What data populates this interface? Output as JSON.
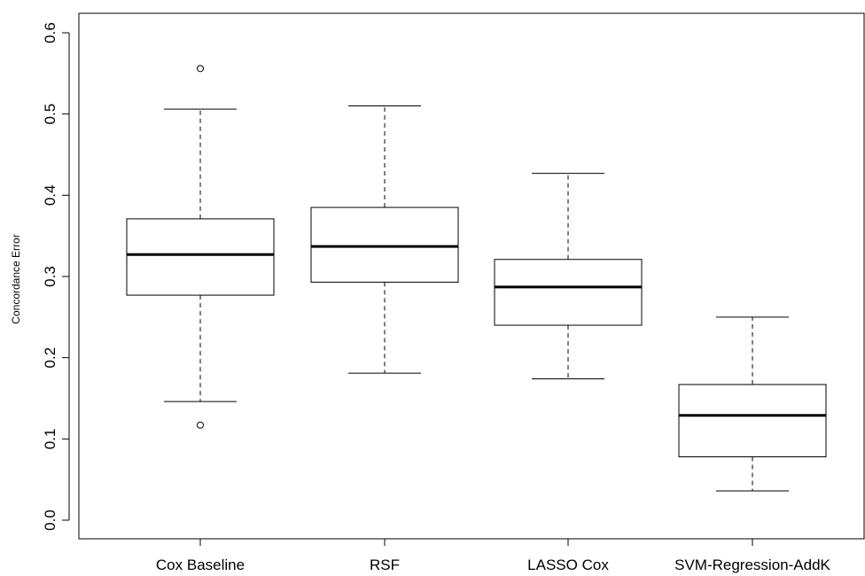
{
  "chart_data": {
    "type": "boxplot",
    "title": "",
    "xlabel": "",
    "ylabel": "Concordance Error",
    "ylim": [
      -0.025,
      0.625
    ],
    "yticks": [
      "0.0",
      "0.1",
      "0.2",
      "0.3",
      "0.4",
      "0.5",
      "0.6"
    ],
    "grid": false,
    "categories": [
      "Cox Baseline",
      "RSF",
      "LASSO Cox",
      "SVM-Regression-AddK"
    ],
    "boxes": [
      {
        "category": "Cox Baseline",
        "whisker_low": 0.146,
        "q1": 0.277,
        "median": 0.327,
        "q3": 0.371,
        "whisker_high": 0.506,
        "outliers": [
          0.117,
          0.556
        ]
      },
      {
        "category": "RSF",
        "whisker_low": 0.181,
        "q1": 0.293,
        "median": 0.337,
        "q3": 0.385,
        "whisker_high": 0.51,
        "outliers": []
      },
      {
        "category": "LASSO Cox",
        "whisker_low": 0.174,
        "q1": 0.24,
        "median": 0.287,
        "q3": 0.321,
        "whisker_high": 0.427,
        "outliers": []
      },
      {
        "category": "SVM-Regression-AddK",
        "whisker_low": 0.036,
        "q1": 0.078,
        "median": 0.129,
        "q3": 0.167,
        "whisker_high": 0.25,
        "outliers": []
      }
    ]
  }
}
